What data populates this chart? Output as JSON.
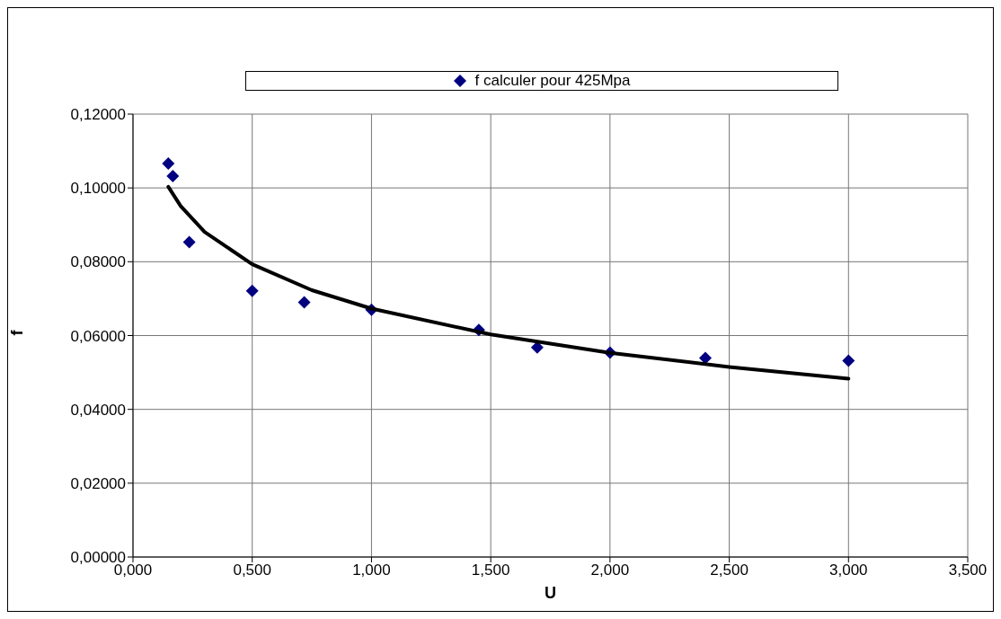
{
  "chart_data": {
    "type": "scatter",
    "xlabel": "U",
    "ylabel": "f",
    "xlim": [
      0,
      3.5
    ],
    "xticks": [
      {
        "value": 0,
        "label": "0,000"
      },
      {
        "value": 0.5,
        "label": "0,500"
      },
      {
        "value": 1,
        "label": "1,000"
      },
      {
        "value": 1.5,
        "label": "1,500"
      },
      {
        "value": 2,
        "label": "2,000"
      },
      {
        "value": 2.5,
        "label": "2,500"
      },
      {
        "value": 3,
        "label": "3,000"
      },
      {
        "value": 3.5,
        "label": "3,500"
      }
    ],
    "ylim": [
      0,
      0.12
    ],
    "yticks": [
      {
        "value": 0,
        "label": "0,00000"
      },
      {
        "value": 0.02,
        "label": "0,02000"
      },
      {
        "value": 0.04,
        "label": "0,04000"
      },
      {
        "value": 0.06,
        "label": "0,06000"
      },
      {
        "value": 0.08,
        "label": "0,08000"
      },
      {
        "value": 0.1,
        "label": "0,10000"
      },
      {
        "value": 0.12,
        "label": "0,12000"
      }
    ],
    "grid": true,
    "legend": "top",
    "marker": "diamond",
    "series": [
      {
        "name": "f calculer pour 425Mpa",
        "color": "#000080",
        "x": [
          0.148,
          0.167,
          0.236,
          0.5,
          0.718,
          1.0,
          1.45,
          1.695,
          2.0,
          2.4,
          3.0
        ],
        "values": [
          0.1066,
          0.1032,
          0.0853,
          0.0721,
          0.069,
          0.067,
          0.0615,
          0.0568,
          0.0554,
          0.0539,
          0.0532
        ]
      },
      {
        "type": "line",
        "color": "#000000",
        "marker": "none",
        "x": [
          0.148,
          0.2,
          0.3,
          0.5,
          0.75,
          1,
          1.5,
          2,
          2.5,
          3
        ],
        "values": [
          0.1003,
          0.0951,
          0.0881,
          0.0793,
          0.0723,
          0.0673,
          0.0603,
          0.0553,
          0.0515,
          0.0483
        ]
      }
    ]
  }
}
